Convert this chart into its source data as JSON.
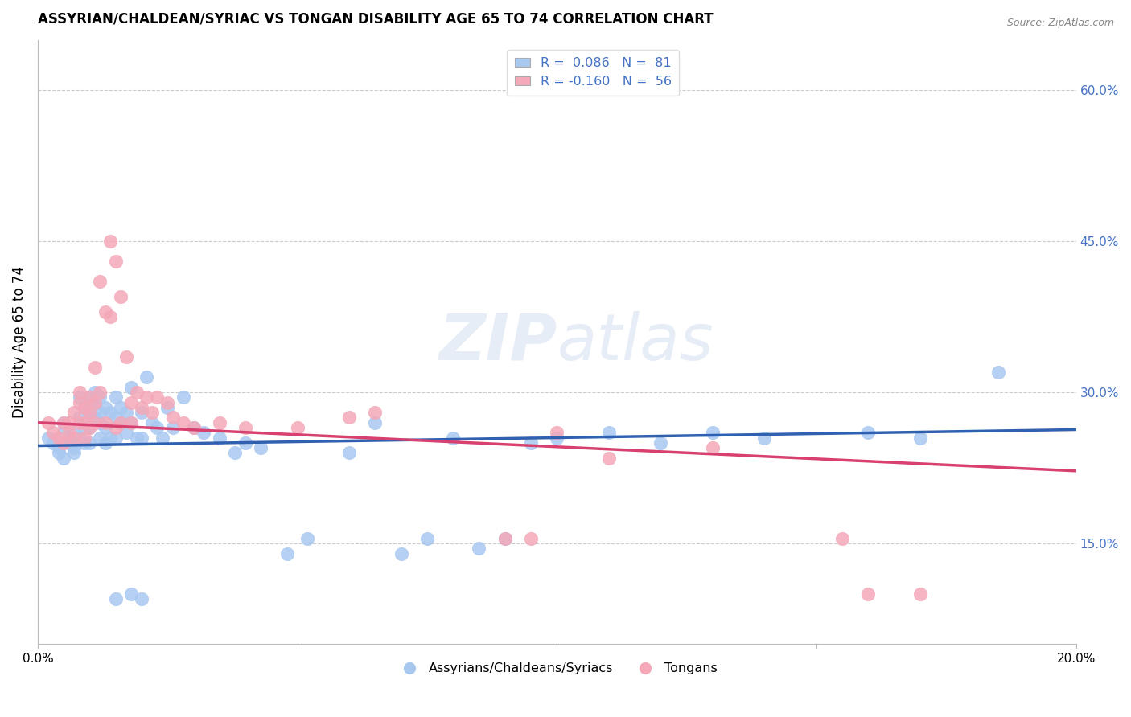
{
  "title": "ASSYRIAN/CHALDEAN/SYRIAC VS TONGAN DISABILITY AGE 65 TO 74 CORRELATION CHART",
  "source": "Source: ZipAtlas.com",
  "ylabel": "Disability Age 65 to 74",
  "ytick_labels": [
    "60.0%",
    "45.0%",
    "30.0%",
    "15.0%"
  ],
  "ytick_values": [
    0.6,
    0.45,
    0.3,
    0.15
  ],
  "xlim": [
    0.0,
    0.2
  ],
  "ylim": [
    0.05,
    0.65
  ],
  "blue_R": 0.086,
  "blue_N": 81,
  "pink_R": -0.16,
  "pink_N": 56,
  "blue_color": "#A8C8F0",
  "pink_color": "#F4A8B8",
  "blue_line_color": "#3060B0",
  "pink_line_color": "#D84070",
  "legend_label_blue": "Assyrians/Chaldeans/Syriacs",
  "legend_label_pink": "Tongans",
  "blue_line_x0": 0.0,
  "blue_line_y0": 0.247,
  "blue_line_x1": 0.2,
  "blue_line_y1": 0.263,
  "pink_line_x0": 0.0,
  "pink_line_y0": 0.27,
  "pink_line_x1": 0.2,
  "pink_line_y1": 0.222,
  "blue_scatter_x": [
    0.002,
    0.003,
    0.004,
    0.004,
    0.005,
    0.005,
    0.005,
    0.006,
    0.006,
    0.007,
    0.007,
    0.007,
    0.008,
    0.008,
    0.008,
    0.009,
    0.009,
    0.009,
    0.009,
    0.01,
    0.01,
    0.01,
    0.01,
    0.011,
    0.011,
    0.011,
    0.012,
    0.012,
    0.012,
    0.012,
    0.013,
    0.013,
    0.013,
    0.014,
    0.014,
    0.015,
    0.015,
    0.015,
    0.016,
    0.016,
    0.017,
    0.017,
    0.018,
    0.018,
    0.019,
    0.02,
    0.02,
    0.021,
    0.022,
    0.023,
    0.024,
    0.025,
    0.026,
    0.028,
    0.03,
    0.032,
    0.035,
    0.038,
    0.04,
    0.043,
    0.048,
    0.052,
    0.06,
    0.065,
    0.07,
    0.075,
    0.08,
    0.085,
    0.09,
    0.095,
    0.1,
    0.11,
    0.12,
    0.13,
    0.14,
    0.16,
    0.17,
    0.185,
    0.015,
    0.018,
    0.02
  ],
  "blue_scatter_y": [
    0.255,
    0.25,
    0.245,
    0.24,
    0.27,
    0.235,
    0.26,
    0.255,
    0.25,
    0.26,
    0.245,
    0.24,
    0.295,
    0.275,
    0.255,
    0.285,
    0.27,
    0.265,
    0.25,
    0.295,
    0.28,
    0.265,
    0.25,
    0.3,
    0.29,
    0.275,
    0.295,
    0.28,
    0.27,
    0.255,
    0.285,
    0.265,
    0.25,
    0.28,
    0.255,
    0.295,
    0.275,
    0.255,
    0.285,
    0.27,
    0.28,
    0.26,
    0.305,
    0.27,
    0.255,
    0.28,
    0.255,
    0.315,
    0.27,
    0.265,
    0.255,
    0.285,
    0.265,
    0.295,
    0.265,
    0.26,
    0.255,
    0.24,
    0.25,
    0.245,
    0.14,
    0.155,
    0.24,
    0.27,
    0.14,
    0.155,
    0.255,
    0.145,
    0.155,
    0.25,
    0.255,
    0.26,
    0.25,
    0.26,
    0.255,
    0.26,
    0.255,
    0.32,
    0.095,
    0.1,
    0.095
  ],
  "pink_scatter_x": [
    0.002,
    0.003,
    0.004,
    0.005,
    0.005,
    0.006,
    0.006,
    0.007,
    0.007,
    0.008,
    0.008,
    0.008,
    0.009,
    0.009,
    0.009,
    0.01,
    0.01,
    0.01,
    0.011,
    0.011,
    0.011,
    0.012,
    0.012,
    0.013,
    0.013,
    0.014,
    0.014,
    0.015,
    0.015,
    0.016,
    0.016,
    0.017,
    0.018,
    0.018,
    0.019,
    0.02,
    0.021,
    0.022,
    0.023,
    0.025,
    0.026,
    0.028,
    0.03,
    0.035,
    0.04,
    0.05,
    0.06,
    0.065,
    0.09,
    0.095,
    0.1,
    0.11,
    0.13,
    0.155,
    0.16,
    0.17
  ],
  "pink_scatter_y": [
    0.27,
    0.26,
    0.255,
    0.27,
    0.25,
    0.27,
    0.26,
    0.28,
    0.255,
    0.3,
    0.29,
    0.27,
    0.285,
    0.27,
    0.255,
    0.295,
    0.28,
    0.265,
    0.325,
    0.29,
    0.27,
    0.41,
    0.3,
    0.38,
    0.27,
    0.45,
    0.375,
    0.43,
    0.265,
    0.395,
    0.27,
    0.335,
    0.29,
    0.27,
    0.3,
    0.285,
    0.295,
    0.28,
    0.295,
    0.29,
    0.275,
    0.27,
    0.265,
    0.27,
    0.265,
    0.265,
    0.275,
    0.28,
    0.155,
    0.155,
    0.26,
    0.235,
    0.245,
    0.155,
    0.1,
    0.1
  ]
}
